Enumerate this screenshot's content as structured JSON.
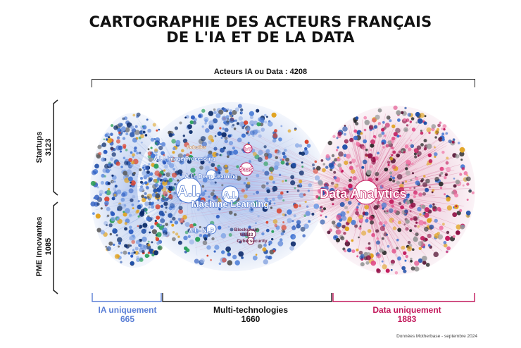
{
  "title": {
    "line1": "CARTOGRAPHIE DES ACTEURS FRANÇAIS",
    "line2": "DE L'IA ET DE LA DATA"
  },
  "total_label": "Acteurs IA ou Data : 4208",
  "left_groups": [
    {
      "label": "Startups",
      "value": "3123"
    },
    {
      "label": "PME Innovantes",
      "value": "1085"
    }
  ],
  "bottom_groups": [
    {
      "label": "IA uniquement",
      "value": "665",
      "color": "#5b7fd6"
    },
    {
      "label": "Multi-technologies",
      "value": "1660",
      "color": "#111111"
    },
    {
      "label": "Data uniquement",
      "value": "1883",
      "color": "#c2185b"
    }
  ],
  "nodes": {
    "ai": "A.I.",
    "ml_line1": "A.I.",
    "ml_line2": "Machine Learning",
    "data_analytics": "Data Analytics",
    "deep_learning": "A.I. - Deep Learning",
    "image_processing": "A.I. - Image Processing",
    "nlp": "A.I. - NLP",
    "saas": "SaaS",
    "iot": "IoT",
    "robotics": "Robotics",
    "blockchain_line1": "Blockchain",
    "blockchain_line2": "WEB3",
    "cybersecurity": "Cybersecurity"
  },
  "colors": {
    "ia": "#4a76d0",
    "multi": "#2b2b2b",
    "data": "#c2185b"
  },
  "source": "Données Motherbase - septembre 2024"
}
